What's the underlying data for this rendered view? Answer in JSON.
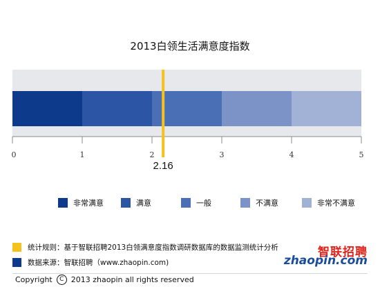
{
  "chart_data": {
    "type": "bar",
    "title": "2013白领生活满意度指数",
    "xlim": [
      0,
      5
    ],
    "ticks": [
      "0",
      "1",
      "2",
      "3",
      "4",
      "5"
    ],
    "bands": [
      {
        "name": "非常满意",
        "from": 0,
        "to": 1,
        "color": "#0d3a8a"
      },
      {
        "name": "满意",
        "from": 1,
        "to": 2,
        "color": "#2d55a5"
      },
      {
        "name": "一般",
        "from": 2,
        "to": 3,
        "color": "#4a6fb4"
      },
      {
        "name": "不满意",
        "from": 3,
        "to": 4,
        "color": "#7c93c8"
      },
      {
        "name": "非常不满意",
        "from": 4,
        "to": 5,
        "color": "#a2b2d6"
      }
    ],
    "marker": {
      "value": 2.16,
      "label": "2.16",
      "color": "#f4c21e"
    },
    "legend_position": "bottom"
  },
  "notes": [
    {
      "text": "统计规则：基于智联招聘2013白领满意度指数调研数据库的数据监测统计分析",
      "color": "#f4c21e"
    },
    {
      "text": "数据来源：智联招聘（www.zhaopin.com)",
      "color": "#0d3a8a"
    }
  ],
  "logo": {
    "cn": "智联招聘",
    "en": "zhaopin.com"
  },
  "copyright": {
    "prefix": "Copyright",
    "symbol": "C",
    "text": "2013 zhaopin all rights  reserved"
  }
}
